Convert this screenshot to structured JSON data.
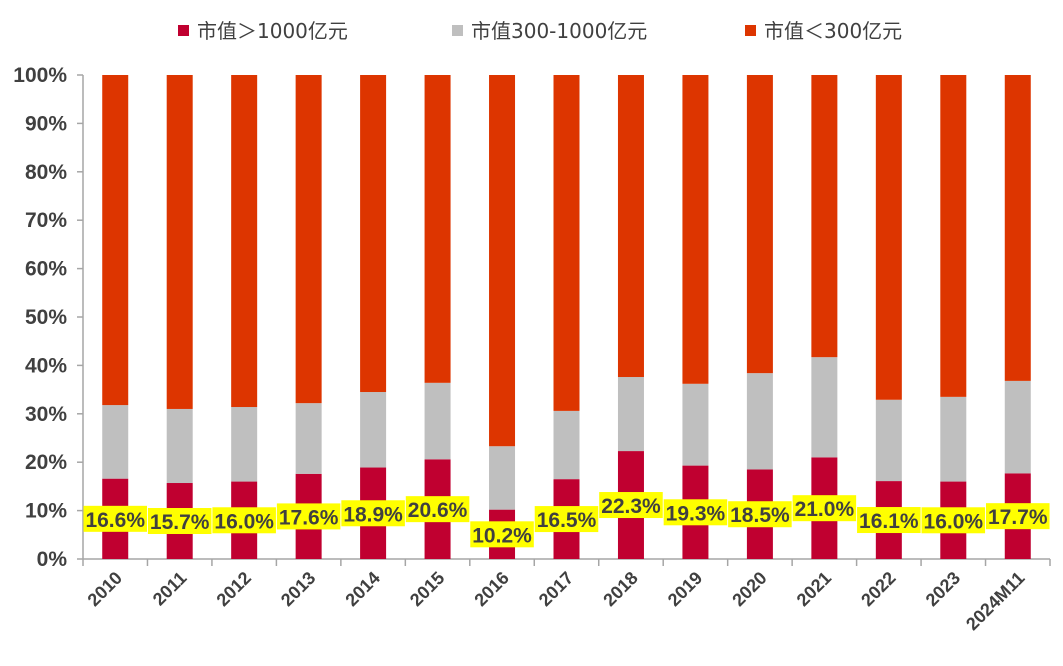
{
  "chart_data": {
    "type": "bar",
    "stacked": true,
    "title": "",
    "xlabel": "",
    "ylabel": "",
    "ylim": [
      0,
      100
    ],
    "yticks": [
      "0%",
      "10%",
      "20%",
      "30%",
      "40%",
      "50%",
      "60%",
      "70%",
      "80%",
      "90%",
      "100%"
    ],
    "legend_position": "top",
    "categories": [
      "2010",
      "2011",
      "2012",
      "2013",
      "2014",
      "2015",
      "2016",
      "2017",
      "2018",
      "2019",
      "2020",
      "2021",
      "2022",
      "2023",
      "2024M11"
    ],
    "series": [
      {
        "name": "市值＞1000亿元",
        "color": "#C00030",
        "values": [
          16.6,
          15.7,
          16.0,
          17.6,
          18.9,
          20.6,
          10.2,
          16.5,
          22.3,
          19.3,
          18.5,
          21.0,
          16.1,
          16.0,
          17.7
        ],
        "labels": [
          "16.6%",
          "15.7%",
          "16.0%",
          "17.6%",
          "18.9%",
          "20.6%",
          "10.2%",
          "16.5%",
          "22.3%",
          "19.3%",
          "18.5%",
          "21.0%",
          "16.1%",
          "16.0%",
          "17.7%"
        ]
      },
      {
        "name": "市值300-1000亿元",
        "color": "#BFBFBF",
        "values": [
          15.2,
          15.3,
          15.4,
          14.6,
          15.6,
          15.8,
          13.1,
          14.1,
          15.3,
          16.9,
          19.9,
          20.7,
          16.8,
          17.5,
          19.1
        ]
      },
      {
        "name": "市值＜300亿元",
        "color": "#DD3500",
        "values": [
          68.2,
          69.0,
          68.6,
          67.8,
          65.5,
          63.6,
          76.7,
          69.4,
          62.4,
          63.8,
          61.6,
          58.3,
          67.1,
          66.5,
          63.2
        ]
      }
    ],
    "label_style": {
      "background": "#FFFF00",
      "text_color": "#404040"
    }
  }
}
